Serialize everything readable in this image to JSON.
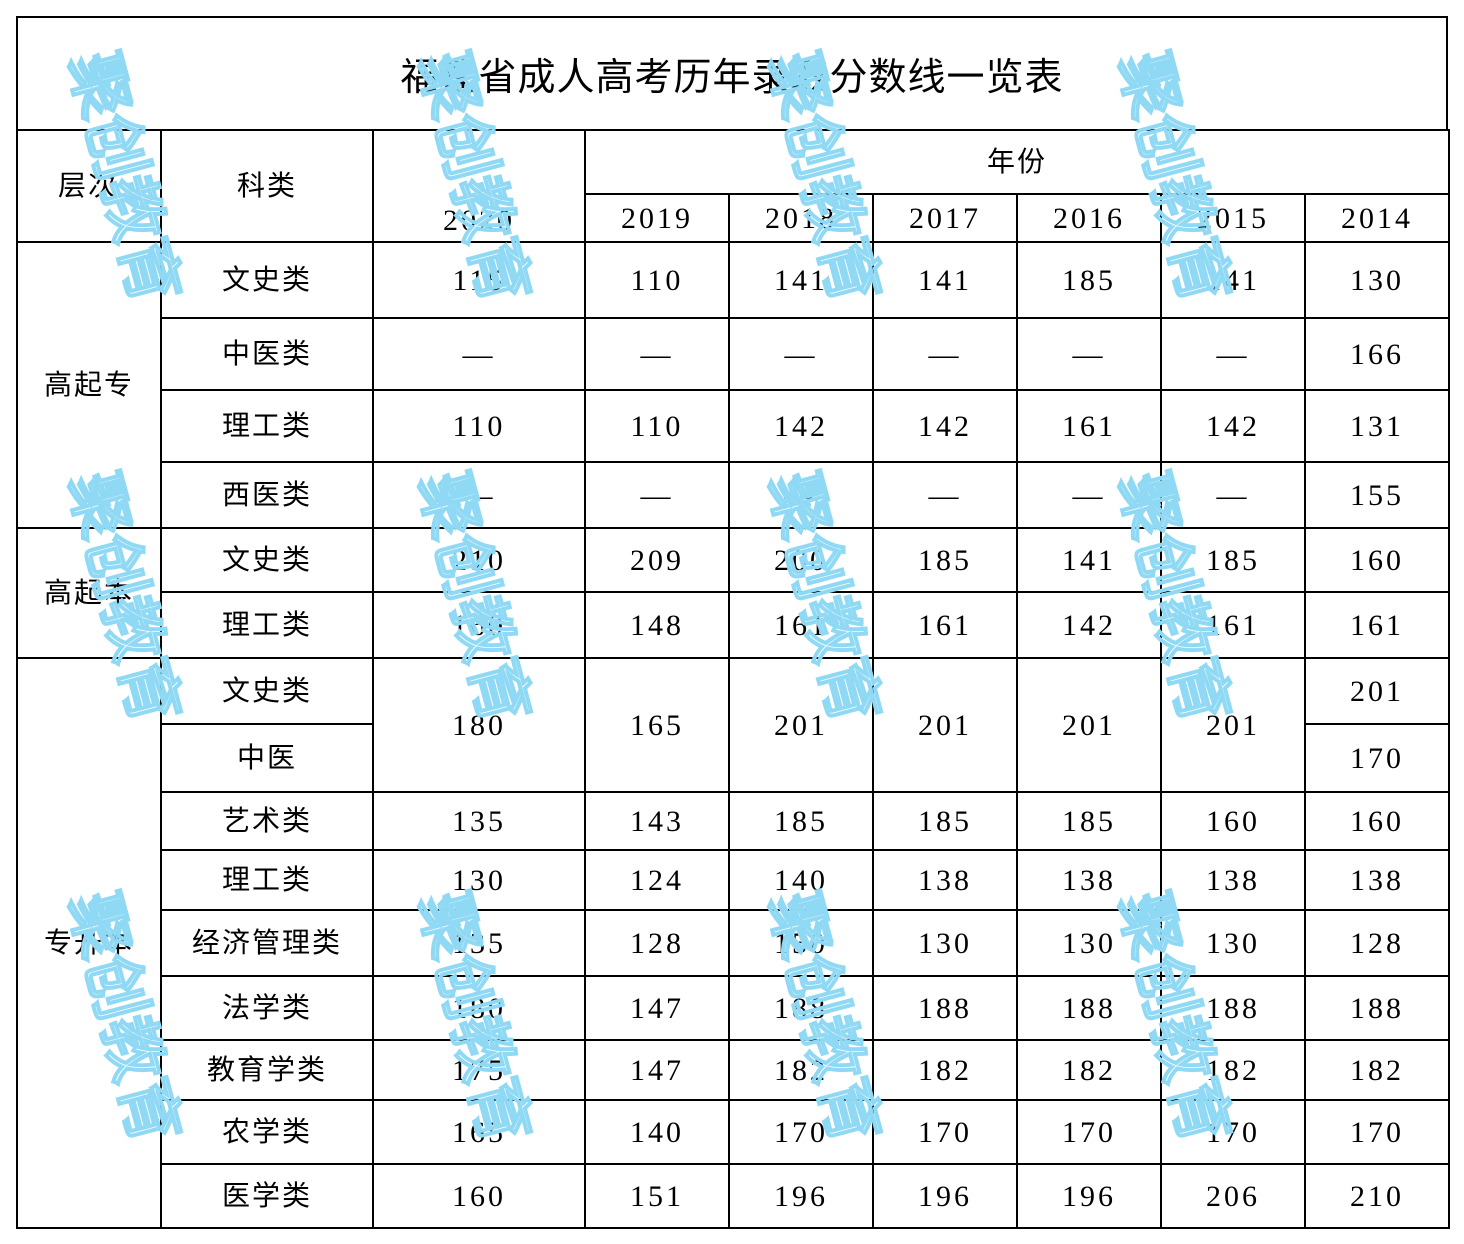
{
  "title": "福建省成人高考历年录取分数线一览表",
  "header": {
    "level": "层次",
    "subject": "科类",
    "year_group": "年份",
    "years": [
      "2020",
      "2019",
      "2018",
      "2017",
      "2016",
      "2015",
      "2014"
    ]
  },
  "groups": {
    "gqz": "高起专",
    "gqb": "高起本",
    "zsb": "专升本"
  },
  "rows": {
    "gqz_wsl": {
      "subject": "文史类",
      "values": [
        "115",
        "110",
        "141",
        "141",
        "185",
        "141",
        "130"
      ]
    },
    "gqz_zyl": {
      "subject": "中医类",
      "values": [
        "—",
        "—",
        "—",
        "—",
        "—",
        "—",
        "166"
      ]
    },
    "gqz_lgl": {
      "subject": "理工类",
      "values": [
        "110",
        "110",
        "142",
        "142",
        "161",
        "142",
        "131"
      ]
    },
    "gqz_xyl": {
      "subject": "西医类",
      "values": [
        "—",
        "—",
        "—",
        "—",
        "—",
        "—",
        "155"
      ]
    },
    "gqb_wsl": {
      "subject": "文史类",
      "values": [
        "210",
        "209",
        "200",
        "185",
        "141",
        "185",
        "160"
      ]
    },
    "gqb_lgl": {
      "subject": "理工类",
      "values": [
        "160",
        "148",
        "161",
        "161",
        "142",
        "161",
        "161"
      ]
    },
    "zsb_wsl_zy": {
      "subject_a": "文史类",
      "subject_b": "中医",
      "values": [
        "180",
        "165",
        "201",
        "201",
        "201",
        "201"
      ],
      "value_2014_a": "201",
      "value_2014_b": "170"
    },
    "zsb_ysl": {
      "subject": "艺术类",
      "values": [
        "135",
        "143",
        "185",
        "185",
        "185",
        "160",
        "160"
      ]
    },
    "zsb_lgl": {
      "subject": "理工类",
      "values": [
        "130",
        "124",
        "140",
        "138",
        "138",
        "138",
        "138"
      ]
    },
    "zsb_jjgl": {
      "subject": "经济管理类",
      "values": [
        "135",
        "128",
        "150",
        "130",
        "130",
        "130",
        "128"
      ]
    },
    "zsb_fxl": {
      "subject": "法学类",
      "values": [
        "180",
        "147",
        "188",
        "188",
        "188",
        "188",
        "188"
      ]
    },
    "zsb_jyxl": {
      "subject": "教育学类",
      "values": [
        "175",
        "147",
        "182",
        "182",
        "182",
        "182",
        "182"
      ]
    },
    "zsb_nxl": {
      "subject": "农学类",
      "values": [
        "165",
        "140",
        "170",
        "170",
        "170",
        "170",
        "170"
      ]
    },
    "zsb_yxl": {
      "subject": "医学类",
      "values": [
        "160",
        "151",
        "196",
        "196",
        "196",
        "206",
        "210"
      ]
    }
  },
  "watermark": "聚创教育",
  "watermark_color": "#8fd9f5"
}
